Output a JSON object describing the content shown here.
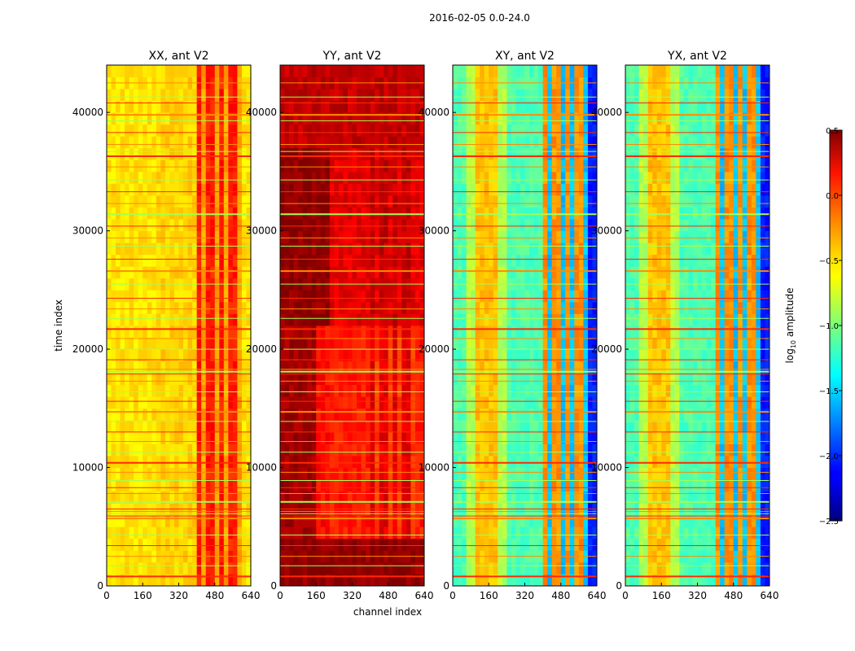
{
  "chart_data": {
    "type": "heatmap",
    "suptitle": "2016-02-05 0.0-24.0",
    "xlabel": "channel index",
    "ylabel": "time index",
    "xlim": [
      0,
      640
    ],
    "ylim": [
      0,
      44000
    ],
    "xticks": [
      "0",
      "160",
      "320",
      "480",
      "640"
    ],
    "xtick_values": [
      0,
      160,
      320,
      480,
      640
    ],
    "yticks": [
      "0",
      "10000",
      "20000",
      "30000",
      "40000"
    ],
    "ytick_values": [
      0,
      10000,
      20000,
      30000,
      40000
    ],
    "colorscale": "jet",
    "colorbar": {
      "label_prefix": "log",
      "label_sub": "10",
      "label_suffix": " amplitude",
      "range": [
        -2.5,
        0.5
      ],
      "ticks": [
        "0.5",
        "0.0",
        "−0.5",
        "−1.0",
        "−1.5",
        "−2.0",
        "−2.5"
      ],
      "tick_values": [
        0.5,
        0.0,
        -0.5,
        -1.0,
        -1.5,
        -2.0,
        -2.5
      ]
    },
    "panels": [
      {
        "title": "XX, ant V2",
        "key": "XX"
      },
      {
        "title": "YY, ant V2",
        "key": "YY"
      },
      {
        "title": "XY, ant V2",
        "key": "XY"
      },
      {
        "title": "YX, ant V2",
        "key": "YX"
      }
    ],
    "rfi_rows": [
      800,
      1700,
      2500,
      3400,
      4300,
      5700,
      5900,
      6100,
      6300,
      6500,
      7100,
      7800,
      8300,
      8900,
      9600,
      10400,
      11300,
      12200,
      13000,
      13900,
      14700,
      15600,
      16400,
      17300,
      17900,
      18100,
      18300,
      19100,
      20000,
      20900,
      21700,
      22600,
      23400,
      24300,
      25500,
      26600,
      27600,
      28700,
      29400,
      30400,
      31400,
      32300,
      33300,
      34300,
      35400,
      36300,
      36700,
      37300,
      38300,
      39300,
      39800,
      40800,
      41300,
      42500
    ]
  }
}
